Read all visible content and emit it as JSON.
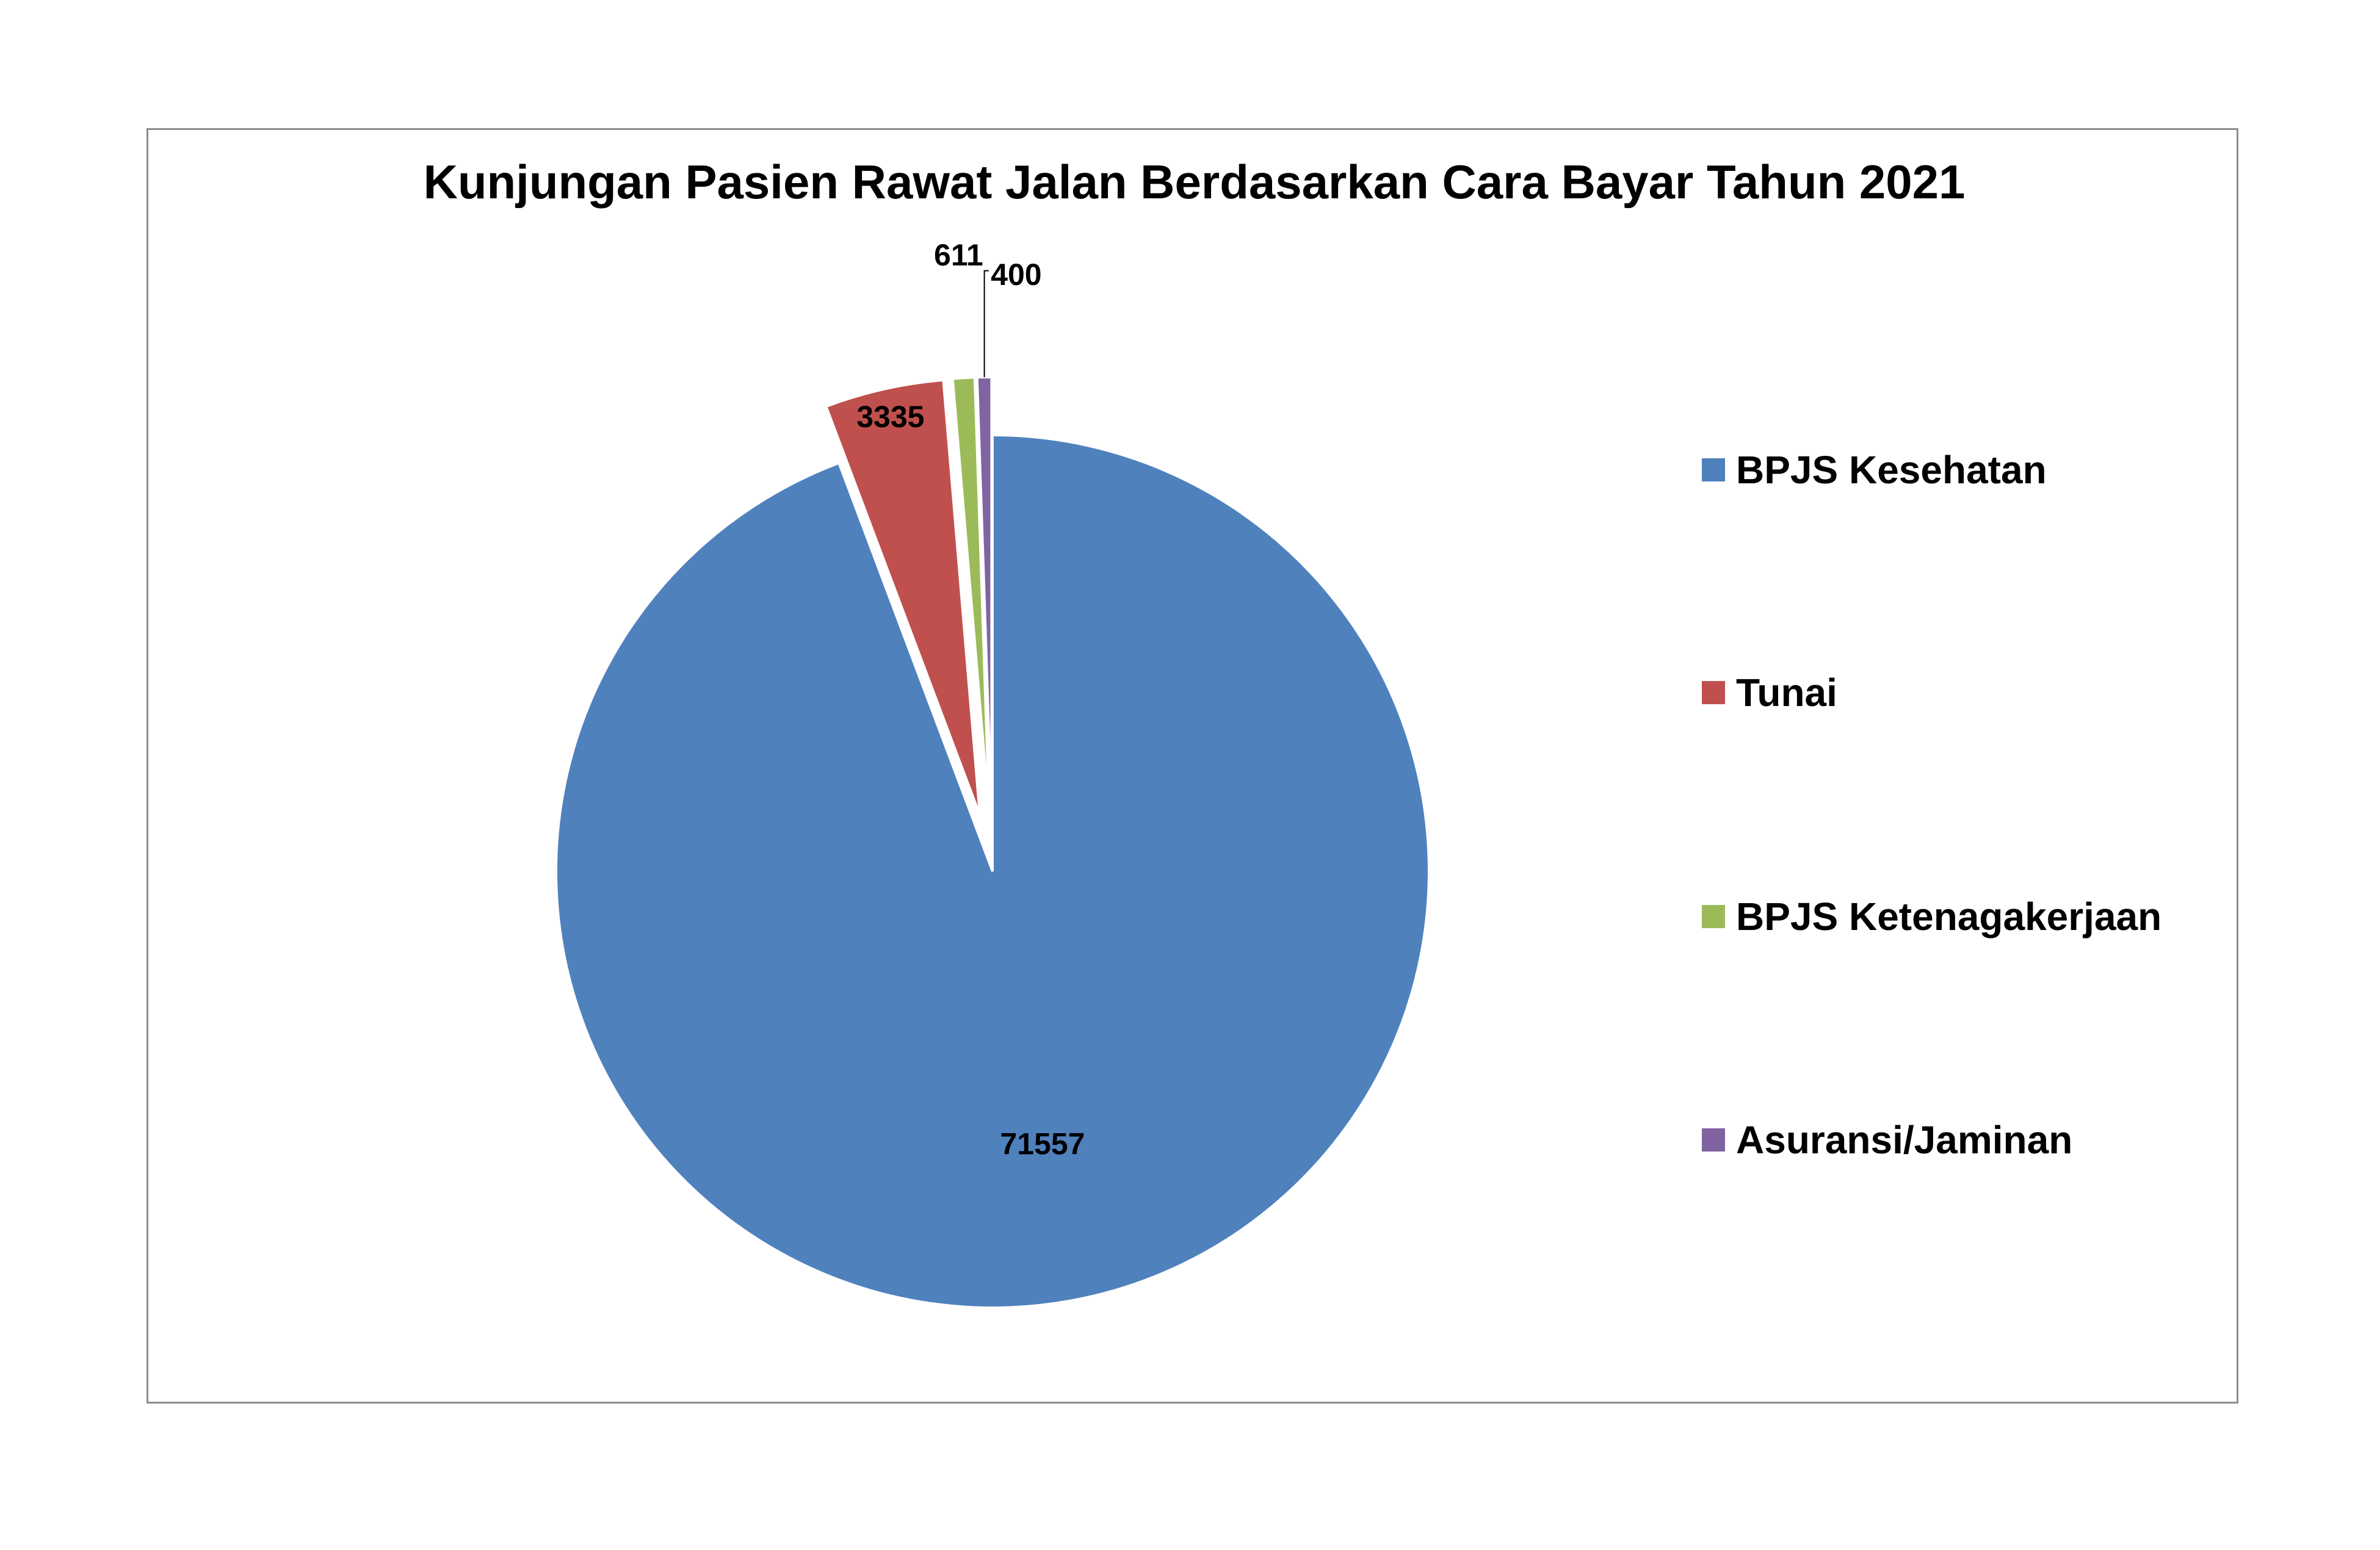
{
  "chart_data": {
    "type": "pie",
    "title": "Kunjungan Pasien Rawat Jalan Berdasarkan Cara Bayar Tahun 2021",
    "categories": [
      "BPJS Kesehatan",
      "Tunai",
      "BPJS Ketenagakerjaan",
      "Asuransi/Jaminan"
    ],
    "values": [
      71557,
      3335,
      611,
      400
    ],
    "data_labels": [
      "71557",
      "3335",
      "611",
      "400"
    ],
    "colors": [
      "#4F81BD",
      "#C0504D",
      "#9BBB59",
      "#8064A2"
    ],
    "exploded": [
      false,
      true,
      true,
      true
    ],
    "legend_position": "right"
  }
}
